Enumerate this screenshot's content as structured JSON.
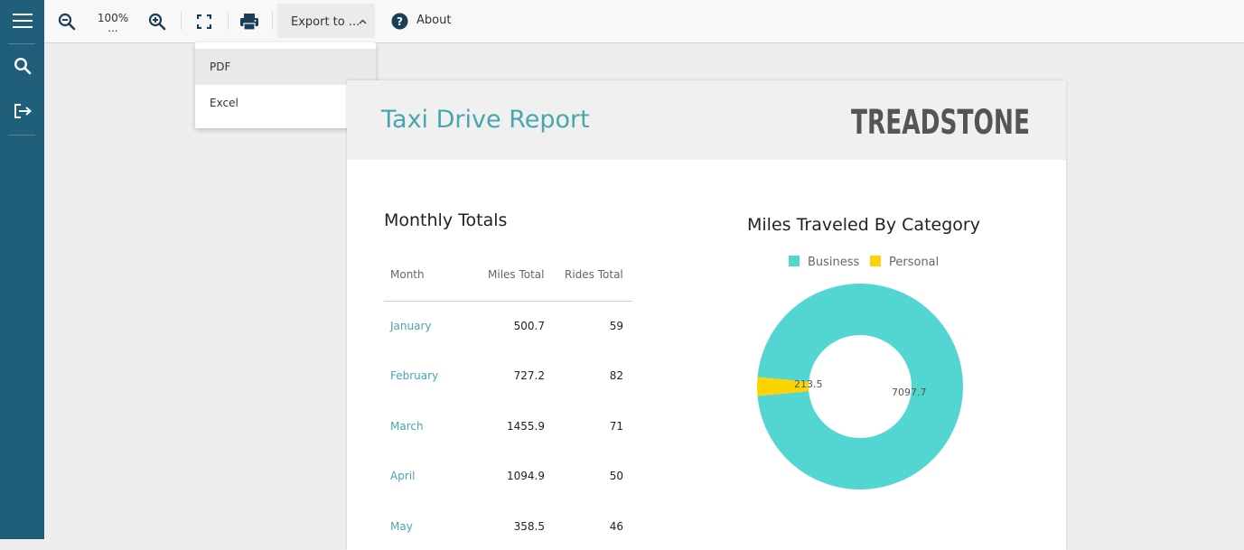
{
  "toolbar": {
    "zoom_level": "100%",
    "zoom_more": "...",
    "export_label": "Export to ...",
    "about_label": "About"
  },
  "export_menu": {
    "items": [
      "PDF",
      "Excel"
    ],
    "highlighted": "PDF"
  },
  "report": {
    "title": "Taxi Drive Report",
    "logo_text": "TREADSTONE",
    "table": {
      "title": "Monthly Totals",
      "headers": [
        "Month",
        "Miles Total",
        "Rides Total"
      ],
      "rows": [
        {
          "month": "January",
          "miles": "500.7",
          "rides": "59"
        },
        {
          "month": "February",
          "miles": "727.2",
          "rides": "82"
        },
        {
          "month": "March",
          "miles": "1455.9",
          "rides": "71"
        },
        {
          "month": "April",
          "miles": "1094.9",
          "rides": "50"
        },
        {
          "month": "May",
          "miles": "358.5",
          "rides": "46"
        }
      ]
    }
  },
  "chart_data": {
    "type": "pie",
    "title": "Miles Traveled By Category",
    "categories": [
      "Business",
      "Personal"
    ],
    "values": [
      7097.7,
      213.5
    ],
    "labels": [
      "7097.7",
      "213.5"
    ],
    "colors": [
      "#53d5d1",
      "#fdd400"
    ],
    "donut": true,
    "legend": "top"
  },
  "colors": {
    "sidebar": "#1f5f7a",
    "accent": "#47a7ad"
  },
  "icons": [
    "menu-icon",
    "search-icon",
    "exit-icon",
    "zoom-out-icon",
    "zoom-in-icon",
    "fullscreen-icon",
    "print-icon",
    "chevron-up-icon",
    "help-icon"
  ]
}
